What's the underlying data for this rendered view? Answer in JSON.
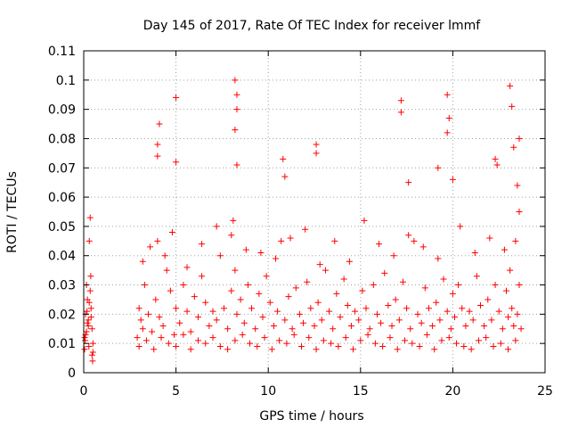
{
  "chart_data": {
    "type": "scatter",
    "title": "Day 145 of 2017, Rate Of TEC Index for receiver lmmf",
    "xlabel": "GPS time / hours",
    "ylabel": "ROTI / TECUs",
    "xlim": [
      0,
      25
    ],
    "ylim": [
      0,
      0.11
    ],
    "xticks": [
      0,
      5,
      10,
      15,
      20,
      25
    ],
    "yticks": [
      0,
      0.01,
      0.02,
      0.03,
      0.04,
      0.05,
      0.06,
      0.07,
      0.08,
      0.09,
      0.1,
      0.11
    ],
    "grid": true,
    "marker": "+",
    "color": "#ff0000",
    "series": [
      {
        "x": [
          0.05,
          0.1,
          0.15,
          0.2,
          0.25,
          0.3,
          0.35,
          0.4,
          0.45,
          0.5,
          0.05,
          0.15,
          0.25,
          0.35,
          0.45,
          0.08,
          0.18,
          0.28,
          0.38,
          0.48,
          0.1,
          0.2,
          0.3,
          0.4,
          0.5,
          2.9,
          3.0,
          3.1,
          3.2,
          3.3,
          3.5,
          3.7,
          3.9,
          4.0,
          4.1,
          4.3,
          4.5,
          4.7,
          4.9,
          5.0,
          5.2,
          5.4,
          5.6,
          5.8,
          6.0,
          6.2,
          6.4,
          6.6,
          6.8,
          7.0,
          7.2,
          7.4,
          7.6,
          7.8,
          8.0,
          8.1,
          8.2,
          8.3,
          8.5,
          8.7,
          8.9,
          9.1,
          9.3,
          9.5,
          9.7,
          9.9,
          10.1,
          10.3,
          10.5,
          10.7,
          10.9,
          11.1,
          11.3,
          11.5,
          11.7,
          11.9,
          12.1,
          12.3,
          12.5,
          12.7,
          12.9,
          13.1,
          13.3,
          13.5,
          13.7,
          13.9,
          14.1,
          14.3,
          14.5,
          14.7,
          14.9,
          15.1,
          15.3,
          15.5,
          15.7,
          15.9,
          16.1,
          16.3,
          16.5,
          16.7,
          16.9,
          17.1,
          17.3,
          17.5,
          17.7,
          17.9,
          18.1,
          18.3,
          18.5,
          18.7,
          18.9,
          19.1,
          19.3,
          19.5,
          19.7,
          19.9,
          20.0,
          20.1,
          20.3,
          20.5,
          20.7,
          20.9,
          21.1,
          21.3,
          21.5,
          21.7,
          21.9,
          22.1,
          22.3,
          22.5,
          22.7,
          22.9,
          23.0,
          23.1,
          23.2,
          23.3,
          23.4,
          23.5,
          23.6,
          23.7,
          3.0,
          3.4,
          3.8,
          4.2,
          4.6,
          5.0,
          5.4,
          5.8,
          6.2,
          6.6,
          7.0,
          7.4,
          7.8,
          8.2,
          8.6,
          9.0,
          9.4,
          9.8,
          10.2,
          10.6,
          11.0,
          11.4,
          11.8,
          12.2,
          12.6,
          13.0,
          13.4,
          13.8,
          14.2,
          14.6,
          15.0,
          15.4,
          15.8,
          16.2,
          16.6,
          17.0,
          17.4,
          17.8,
          18.2,
          18.6,
          19.0,
          19.4,
          19.8,
          20.2,
          20.6,
          21.0,
          21.4,
          21.8,
          22.2,
          22.6,
          23.0,
          23.4,
          3.2,
          3.6,
          4.4,
          4.8,
          5.6,
          6.4,
          7.2,
          8.0,
          8.8,
          9.6,
          10.4,
          11.2,
          12.0,
          12.8,
          13.6,
          14.4,
          15.2,
          16.0,
          16.8,
          17.6,
          18.4,
          19.2,
          20.4,
          21.2,
          22.0,
          22.8,
          23.6,
          4.0,
          4.1,
          4.0,
          5.0,
          5.0,
          8.2,
          8.3,
          8.3,
          8.2,
          8.3,
          10.8,
          10.9,
          12.6,
          12.6,
          17.2,
          17.2,
          17.6,
          19.2,
          19.7,
          19.8,
          19.7,
          20.0,
          22.3,
          22.4,
          23.1,
          23.2,
          23.3,
          23.6,
          23.5
        ],
        "y": [
          0.012,
          0.02,
          0.03,
          0.025,
          0.018,
          0.045,
          0.053,
          0.022,
          0.015,
          0.01,
          0.008,
          0.014,
          0.016,
          0.028,
          0.006,
          0.011,
          0.021,
          0.009,
          0.033,
          0.004,
          0.013,
          0.017,
          0.024,
          0.019,
          0.007,
          0.012,
          0.022,
          0.018,
          0.015,
          0.03,
          0.02,
          0.014,
          0.025,
          0.045,
          0.019,
          0.016,
          0.035,
          0.028,
          0.013,
          0.022,
          0.017,
          0.03,
          0.021,
          0.014,
          0.026,
          0.019,
          0.033,
          0.024,
          0.016,
          0.021,
          0.018,
          0.04,
          0.022,
          0.015,
          0.028,
          0.052,
          0.035,
          0.02,
          0.025,
          0.017,
          0.03,
          0.022,
          0.015,
          0.027,
          0.019,
          0.033,
          0.024,
          0.016,
          0.021,
          0.045,
          0.018,
          0.026,
          0.015,
          0.029,
          0.02,
          0.017,
          0.031,
          0.022,
          0.016,
          0.024,
          0.018,
          0.035,
          0.021,
          0.015,
          0.027,
          0.019,
          0.032,
          0.023,
          0.016,
          0.021,
          0.018,
          0.028,
          0.022,
          0.015,
          0.03,
          0.02,
          0.017,
          0.034,
          0.023,
          0.016,
          0.025,
          0.018,
          0.031,
          0.022,
          0.015,
          0.045,
          0.02,
          0.017,
          0.029,
          0.022,
          0.016,
          0.024,
          0.018,
          0.032,
          0.021,
          0.015,
          0.027,
          0.019,
          0.03,
          0.022,
          0.016,
          0.021,
          0.018,
          0.033,
          0.023,
          0.016,
          0.025,
          0.018,
          0.03,
          0.021,
          0.015,
          0.028,
          0.019,
          0.035,
          0.022,
          0.016,
          0.045,
          0.02,
          0.03,
          0.015,
          0.009,
          0.011,
          0.008,
          0.012,
          0.01,
          0.009,
          0.013,
          0.008,
          0.011,
          0.01,
          0.012,
          0.009,
          0.008,
          0.011,
          0.013,
          0.01,
          0.009,
          0.012,
          0.008,
          0.011,
          0.01,
          0.013,
          0.009,
          0.012,
          0.008,
          0.011,
          0.01,
          0.009,
          0.012,
          0.008,
          0.011,
          0.013,
          0.01,
          0.009,
          0.012,
          0.008,
          0.011,
          0.01,
          0.009,
          0.013,
          0.008,
          0.011,
          0.012,
          0.01,
          0.009,
          0.008,
          0.011,
          0.012,
          0.009,
          0.01,
          0.008,
          0.011,
          0.038,
          0.043,
          0.04,
          0.048,
          0.036,
          0.044,
          0.05,
          0.047,
          0.042,
          0.041,
          0.039,
          0.046,
          0.049,
          0.037,
          0.045,
          0.038,
          0.052,
          0.044,
          0.04,
          0.047,
          0.043,
          0.039,
          0.05,
          0.041,
          0.046,
          0.042,
          0.055,
          0.078,
          0.085,
          0.074,
          0.094,
          0.072,
          0.1,
          0.095,
          0.09,
          0.083,
          0.071,
          0.073,
          0.067,
          0.078,
          0.075,
          0.093,
          0.089,
          0.065,
          0.07,
          0.095,
          0.087,
          0.082,
          0.066,
          0.073,
          0.071,
          0.098,
          0.091,
          0.077,
          0.08,
          0.064
        ]
      }
    ]
  }
}
